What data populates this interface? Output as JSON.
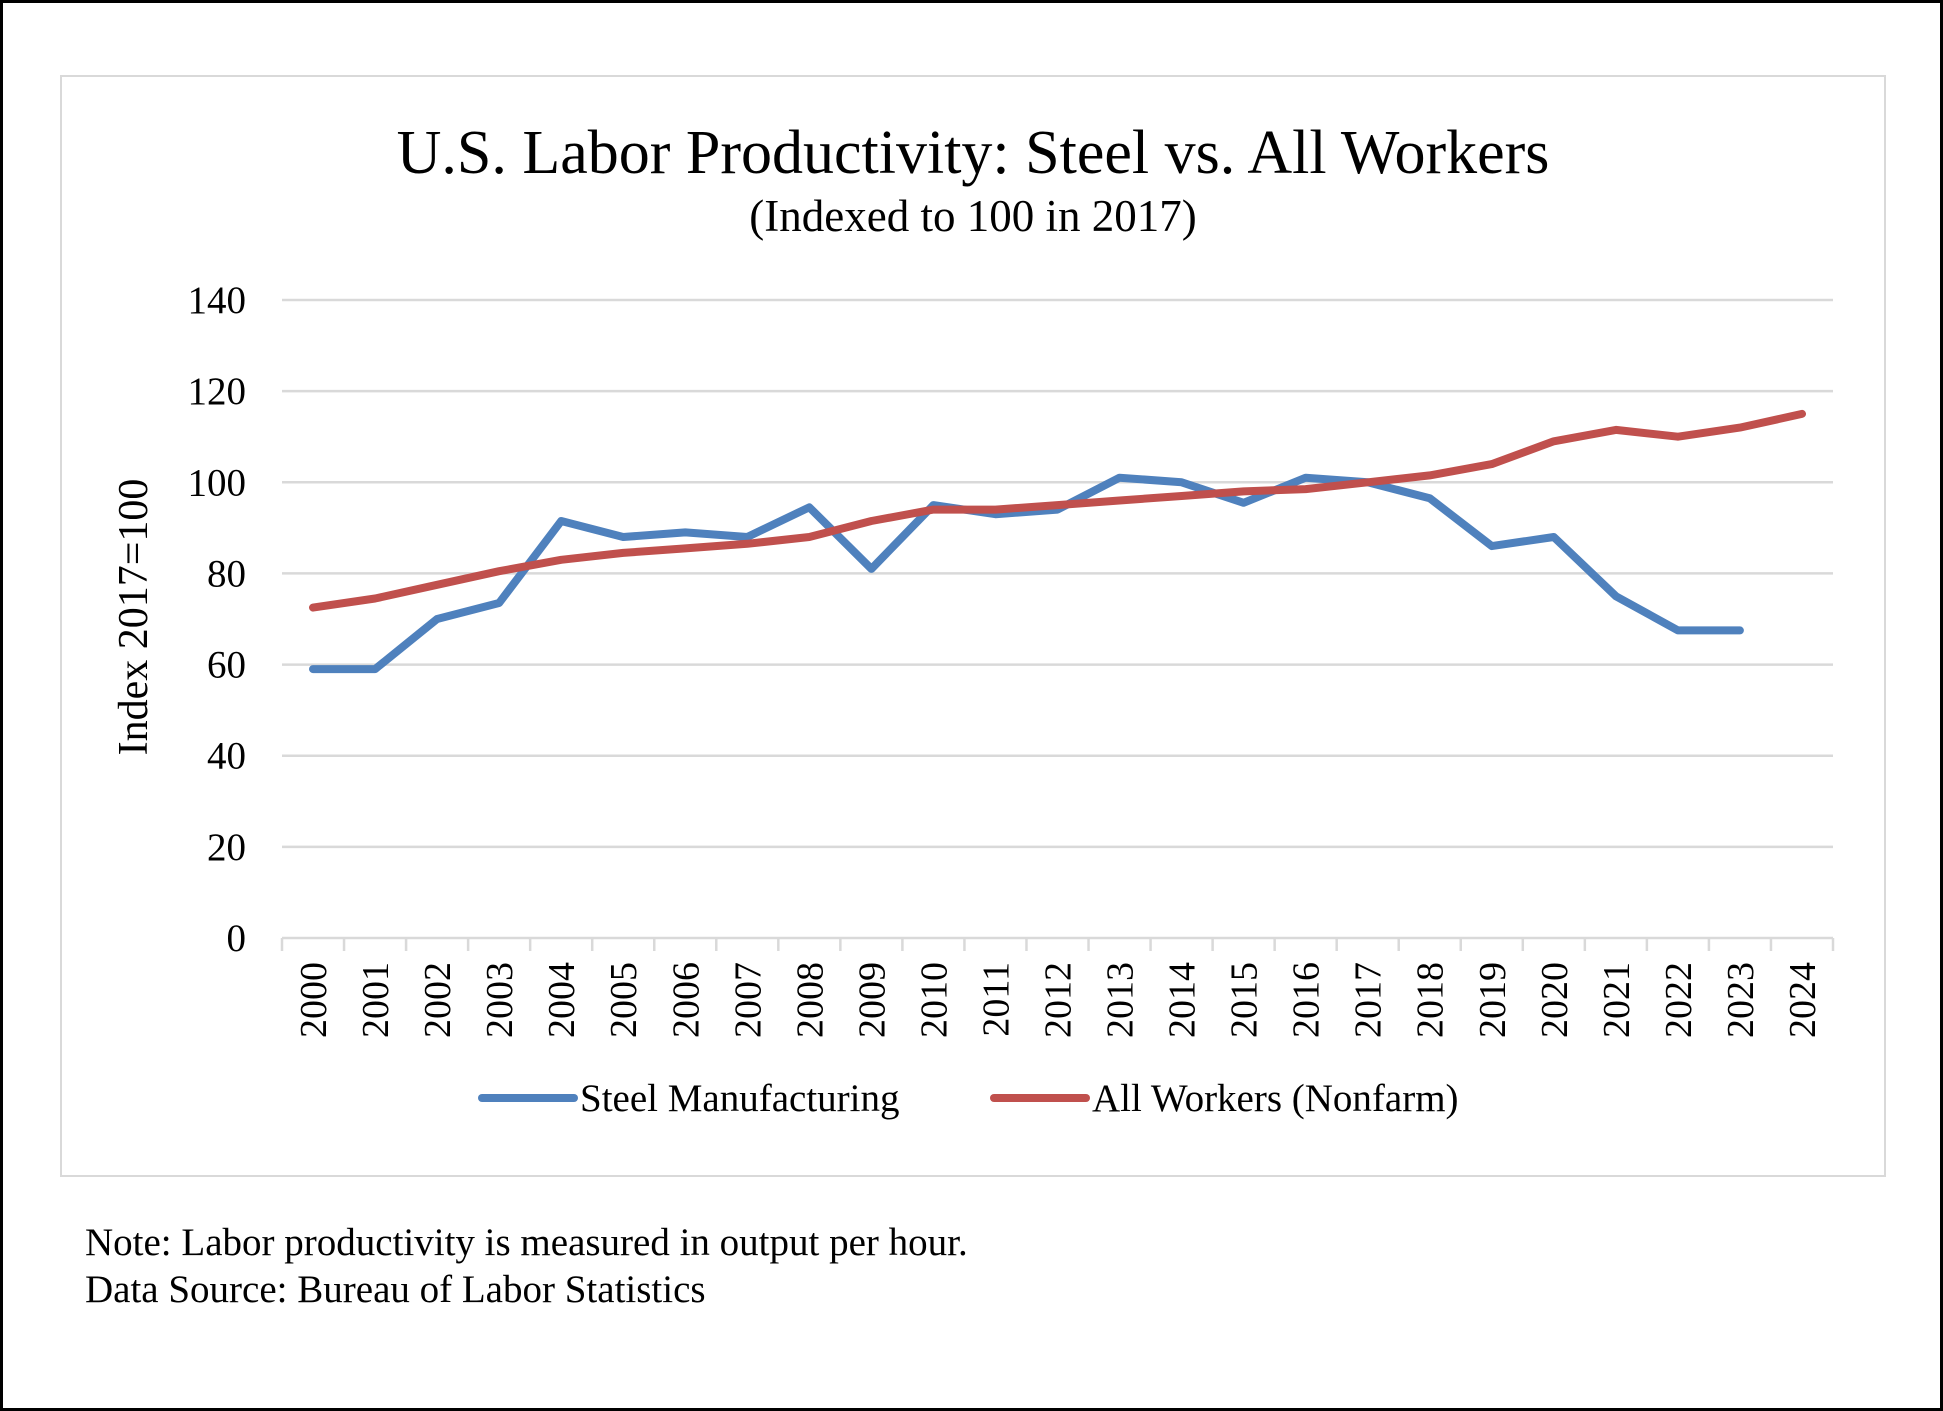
{
  "chart_data": {
    "type": "line",
    "title": "U.S. Labor Productivity: Steel vs. All Workers",
    "subtitle": "(Indexed to 100 in 2017)",
    "xlabel": "",
    "ylabel": "Index 2017=100",
    "ylim": [
      0,
      140
    ],
    "yticks": [
      0,
      20,
      40,
      60,
      80,
      100,
      120,
      140
    ],
    "grid": true,
    "legend_position": "bottom",
    "categories": [
      "2000",
      "2001",
      "2002",
      "2003",
      "2004",
      "2005",
      "2006",
      "2007",
      "2008",
      "2009",
      "2010",
      "2011",
      "2012",
      "2013",
      "2014",
      "2015",
      "2016",
      "2017",
      "2018",
      "2019",
      "2020",
      "2021",
      "2022",
      "2023",
      "2024"
    ],
    "series": [
      {
        "name": "Steel Manufacturing",
        "color": "#4f81bd",
        "values": [
          59,
          59,
          70,
          73.5,
          91.5,
          88,
          89,
          88,
          94.5,
          81,
          95,
          93,
          94,
          101,
          100,
          95.5,
          101,
          100,
          96.5,
          86,
          88,
          75,
          67.5,
          67.5,
          null
        ]
      },
      {
        "name": "All Workers (Nonfarm)",
        "color": "#c0504d",
        "values": [
          72.5,
          74.5,
          77.5,
          80.5,
          83,
          84.5,
          85.5,
          86.5,
          88,
          91.5,
          94,
          94,
          95,
          96,
          97,
          98,
          98.5,
          100,
          101.5,
          104,
          109,
          111.5,
          110,
          112,
          115
        ]
      }
    ]
  },
  "notes": {
    "line1": "Note: Labor productivity is measured in output per hour.",
    "line2": "Data Source: Bureau of Labor Statistics"
  }
}
